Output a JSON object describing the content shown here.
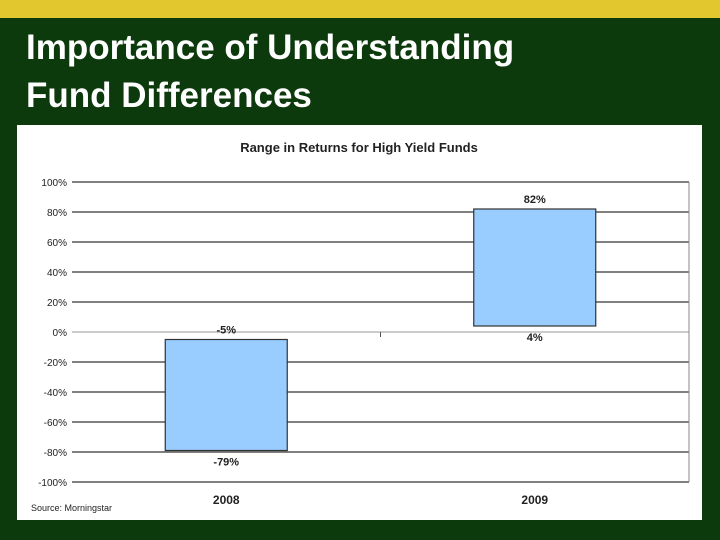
{
  "slide": {
    "title_line1": "Importance of Understanding",
    "title_line2": "Fund Differences",
    "source": "Source:  Morningstar"
  },
  "colors": {
    "background": "#0c3a0c",
    "top_bar": "#e2c72e",
    "bar_fill": "#99ccff",
    "bar_stroke": "#333333"
  },
  "chart_data": {
    "type": "bar",
    "title": "Range in Returns for High Yield Funds",
    "categories": [
      "2008",
      "2009"
    ],
    "ranges": [
      {
        "category": "2008",
        "high": -5,
        "low": -79,
        "high_label": "-5%",
        "low_label": "-79%"
      },
      {
        "category": "2009",
        "high": 82,
        "low": 4,
        "high_label": "82%",
        "low_label": "4%"
      }
    ],
    "ylim": [
      -100,
      100
    ],
    "yticks": [
      100,
      80,
      60,
      40,
      20,
      0,
      -20,
      -40,
      -60,
      -80,
      -100
    ],
    "ytick_labels": [
      "100%",
      "80%",
      "60%",
      "40%",
      "20%",
      "0%",
      "-20%",
      "-40%",
      "-60%",
      "-80%",
      "-100%"
    ],
    "grid": true,
    "legend": "none"
  }
}
